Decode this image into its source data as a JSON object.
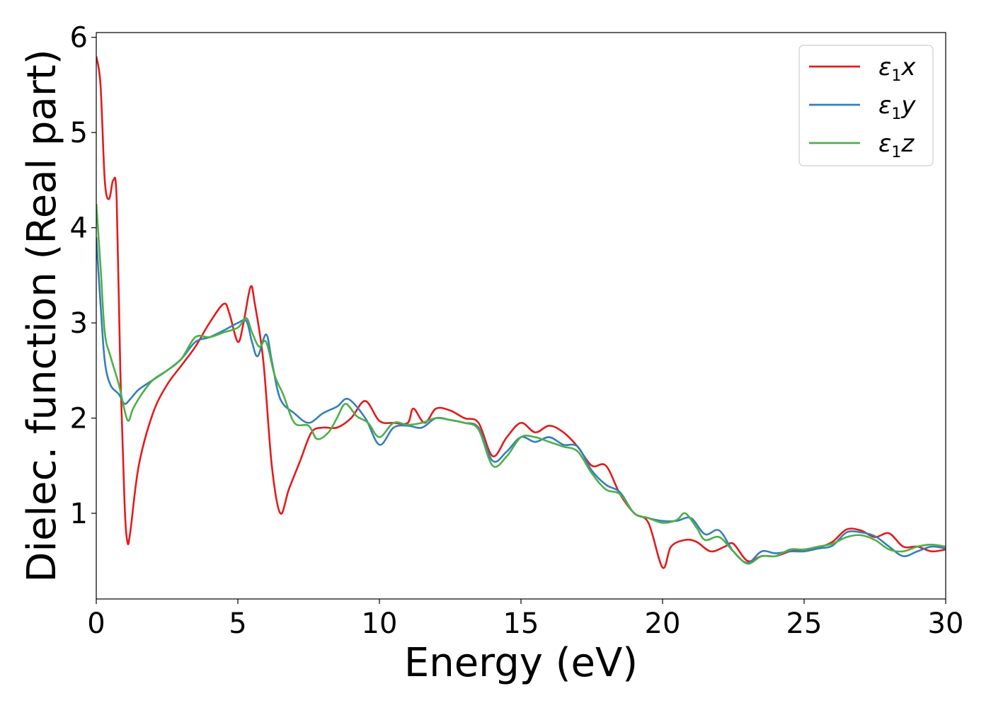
{
  "chart_data": {
    "type": "line",
    "title": "",
    "xlabel": "Energy (eV)",
    "ylabel": "Dielec. function (Real part)",
    "xlim": [
      0,
      30
    ],
    "ylim": [
      0.1,
      6.05
    ],
    "xticks": [
      0,
      5,
      10,
      15,
      20,
      25,
      30
    ],
    "yticks": [
      1,
      2,
      3,
      4,
      5,
      6
    ],
    "grid": false,
    "legend_position": "top-right",
    "series": [
      {
        "name": "ε1x",
        "legend": {
          "main": "ε",
          "sub": "1",
          "suffix": "x"
        },
        "color": "#e41a1c",
        "points": [
          [
            0,
            5.8
          ],
          [
            0.15,
            5.5
          ],
          [
            0.3,
            4.5
          ],
          [
            0.45,
            4.3
          ],
          [
            0.6,
            4.5
          ],
          [
            0.72,
            4.3
          ],
          [
            0.85,
            2.5
          ],
          [
            1.0,
            1.1
          ],
          [
            1.1,
            0.7
          ],
          [
            1.2,
            0.8
          ],
          [
            1.5,
            1.5
          ],
          [
            2.0,
            2.05
          ],
          [
            2.5,
            2.35
          ],
          [
            3.0,
            2.55
          ],
          [
            3.5,
            2.75
          ],
          [
            4.0,
            3.0
          ],
          [
            4.5,
            3.2
          ],
          [
            4.7,
            3.1
          ],
          [
            5.0,
            2.8
          ],
          [
            5.2,
            3.0
          ],
          [
            5.45,
            3.38
          ],
          [
            5.6,
            3.2
          ],
          [
            5.9,
            2.6
          ],
          [
            6.2,
            1.5
          ],
          [
            6.5,
            1.0
          ],
          [
            6.8,
            1.25
          ],
          [
            7.2,
            1.55
          ],
          [
            7.6,
            1.85
          ],
          [
            8.0,
            1.9
          ],
          [
            8.5,
            1.9
          ],
          [
            9.0,
            2.0
          ],
          [
            9.5,
            2.18
          ],
          [
            10.0,
            1.97
          ],
          [
            10.5,
            1.95
          ],
          [
            11.0,
            1.95
          ],
          [
            11.2,
            2.1
          ],
          [
            11.6,
            1.95
          ],
          [
            12.0,
            2.1
          ],
          [
            12.5,
            2.08
          ],
          [
            13.0,
            2.0
          ],
          [
            13.5,
            1.95
          ],
          [
            14.0,
            1.6
          ],
          [
            14.5,
            1.8
          ],
          [
            15.0,
            1.95
          ],
          [
            15.5,
            1.85
          ],
          [
            16.0,
            1.92
          ],
          [
            16.5,
            1.85
          ],
          [
            17.0,
            1.7
          ],
          [
            17.5,
            1.5
          ],
          [
            18.0,
            1.5
          ],
          [
            18.5,
            1.2
          ],
          [
            19.0,
            1.0
          ],
          [
            19.5,
            0.9
          ],
          [
            20.0,
            0.43
          ],
          [
            20.3,
            0.65
          ],
          [
            20.8,
            0.72
          ],
          [
            21.2,
            0.7
          ],
          [
            21.7,
            0.6
          ],
          [
            22.2,
            0.65
          ],
          [
            22.5,
            0.68
          ],
          [
            23.0,
            0.5
          ],
          [
            23.5,
            0.55
          ],
          [
            24.0,
            0.55
          ],
          [
            24.5,
            0.6
          ],
          [
            25.0,
            0.62
          ],
          [
            25.5,
            0.64
          ],
          [
            26.0,
            0.7
          ],
          [
            26.5,
            0.83
          ],
          [
            27.0,
            0.82
          ],
          [
            27.5,
            0.75
          ],
          [
            28.0,
            0.79
          ],
          [
            28.5,
            0.65
          ],
          [
            29.0,
            0.65
          ],
          [
            29.5,
            0.6
          ],
          [
            30.0,
            0.62
          ]
        ]
      },
      {
        "name": "ε1y",
        "legend": {
          "main": "ε",
          "sub": "1",
          "suffix": "y"
        },
        "color": "#377eb8",
        "points": [
          [
            0,
            3.9
          ],
          [
            0.15,
            3.2
          ],
          [
            0.3,
            2.6
          ],
          [
            0.5,
            2.35
          ],
          [
            0.8,
            2.25
          ],
          [
            1.0,
            2.15
          ],
          [
            1.2,
            2.2
          ],
          [
            1.5,
            2.3
          ],
          [
            2.0,
            2.4
          ],
          [
            2.5,
            2.5
          ],
          [
            3.0,
            2.62
          ],
          [
            3.5,
            2.8
          ],
          [
            4.0,
            2.85
          ],
          [
            4.5,
            2.92
          ],
          [
            5.0,
            3.0
          ],
          [
            5.3,
            3.02
          ],
          [
            5.5,
            2.8
          ],
          [
            5.7,
            2.65
          ],
          [
            6.0,
            2.88
          ],
          [
            6.2,
            2.6
          ],
          [
            6.5,
            2.2
          ],
          [
            7.0,
            2.05
          ],
          [
            7.5,
            1.95
          ],
          [
            8.0,
            2.05
          ],
          [
            8.5,
            2.12
          ],
          [
            8.9,
            2.2
          ],
          [
            9.5,
            2.0
          ],
          [
            10.0,
            1.72
          ],
          [
            10.5,
            1.9
          ],
          [
            11.0,
            1.92
          ],
          [
            11.5,
            1.9
          ],
          [
            12.0,
            2.0
          ],
          [
            12.5,
            1.98
          ],
          [
            13.0,
            1.95
          ],
          [
            13.5,
            1.9
          ],
          [
            14.0,
            1.55
          ],
          [
            14.5,
            1.65
          ],
          [
            15.0,
            1.8
          ],
          [
            15.5,
            1.75
          ],
          [
            16.0,
            1.8
          ],
          [
            16.5,
            1.72
          ],
          [
            17.0,
            1.7
          ],
          [
            17.5,
            1.45
          ],
          [
            18.0,
            1.3
          ],
          [
            18.5,
            1.22
          ],
          [
            19.0,
            1.0
          ],
          [
            19.5,
            0.95
          ],
          [
            20.0,
            0.92
          ],
          [
            20.5,
            0.92
          ],
          [
            21.0,
            0.95
          ],
          [
            21.5,
            0.78
          ],
          [
            22.0,
            0.82
          ],
          [
            22.5,
            0.6
          ],
          [
            23.0,
            0.48
          ],
          [
            23.5,
            0.6
          ],
          [
            24.0,
            0.58
          ],
          [
            24.5,
            0.6
          ],
          [
            25.0,
            0.6
          ],
          [
            25.5,
            0.63
          ],
          [
            26.0,
            0.66
          ],
          [
            26.5,
            0.8
          ],
          [
            27.0,
            0.8
          ],
          [
            27.5,
            0.76
          ],
          [
            28.0,
            0.65
          ],
          [
            28.5,
            0.55
          ],
          [
            29.0,
            0.6
          ],
          [
            29.5,
            0.65
          ],
          [
            30.0,
            0.63
          ]
        ]
      },
      {
        "name": "ε1z",
        "legend": {
          "main": "ε",
          "sub": "1",
          "suffix": "z"
        },
        "color": "#4daf4a",
        "points": [
          [
            0,
            4.25
          ],
          [
            0.15,
            3.6
          ],
          [
            0.3,
            2.9
          ],
          [
            0.5,
            2.65
          ],
          [
            0.8,
            2.35
          ],
          [
            1.1,
            1.98
          ],
          [
            1.3,
            2.1
          ],
          [
            1.6,
            2.25
          ],
          [
            2.0,
            2.4
          ],
          [
            2.5,
            2.5
          ],
          [
            3.0,
            2.62
          ],
          [
            3.5,
            2.85
          ],
          [
            4.0,
            2.85
          ],
          [
            4.5,
            2.9
          ],
          [
            5.0,
            2.95
          ],
          [
            5.3,
            3.05
          ],
          [
            5.5,
            2.9
          ],
          [
            5.75,
            2.75
          ],
          [
            6.0,
            2.8
          ],
          [
            6.3,
            2.45
          ],
          [
            6.6,
            2.25
          ],
          [
            7.0,
            1.95
          ],
          [
            7.5,
            1.92
          ],
          [
            7.8,
            1.78
          ],
          [
            8.2,
            1.85
          ],
          [
            8.5,
            2.0
          ],
          [
            8.8,
            2.15
          ],
          [
            9.2,
            2.02
          ],
          [
            9.6,
            1.95
          ],
          [
            10.0,
            1.8
          ],
          [
            10.5,
            1.95
          ],
          [
            11.0,
            1.93
          ],
          [
            11.5,
            1.95
          ],
          [
            12.0,
            2.0
          ],
          [
            12.5,
            1.98
          ],
          [
            13.0,
            1.95
          ],
          [
            13.5,
            1.88
          ],
          [
            14.0,
            1.5
          ],
          [
            14.5,
            1.6
          ],
          [
            15.0,
            1.8
          ],
          [
            15.5,
            1.8
          ],
          [
            16.0,
            1.75
          ],
          [
            16.5,
            1.7
          ],
          [
            17.0,
            1.65
          ],
          [
            17.5,
            1.42
          ],
          [
            18.0,
            1.25
          ],
          [
            18.5,
            1.2
          ],
          [
            19.0,
            1.0
          ],
          [
            19.5,
            0.95
          ],
          [
            20.0,
            0.9
          ],
          [
            20.5,
            0.93
          ],
          [
            20.8,
            1.0
          ],
          [
            21.2,
            0.85
          ],
          [
            21.5,
            0.72
          ],
          [
            22.0,
            0.75
          ],
          [
            22.5,
            0.6
          ],
          [
            23.0,
            0.47
          ],
          [
            23.5,
            0.55
          ],
          [
            24.0,
            0.55
          ],
          [
            24.5,
            0.62
          ],
          [
            25.0,
            0.62
          ],
          [
            25.5,
            0.65
          ],
          [
            26.0,
            0.68
          ],
          [
            26.5,
            0.75
          ],
          [
            27.0,
            0.77
          ],
          [
            27.5,
            0.72
          ],
          [
            28.0,
            0.62
          ],
          [
            28.5,
            0.6
          ],
          [
            29.0,
            0.65
          ],
          [
            29.5,
            0.67
          ],
          [
            30.0,
            0.65
          ]
        ]
      }
    ]
  }
}
